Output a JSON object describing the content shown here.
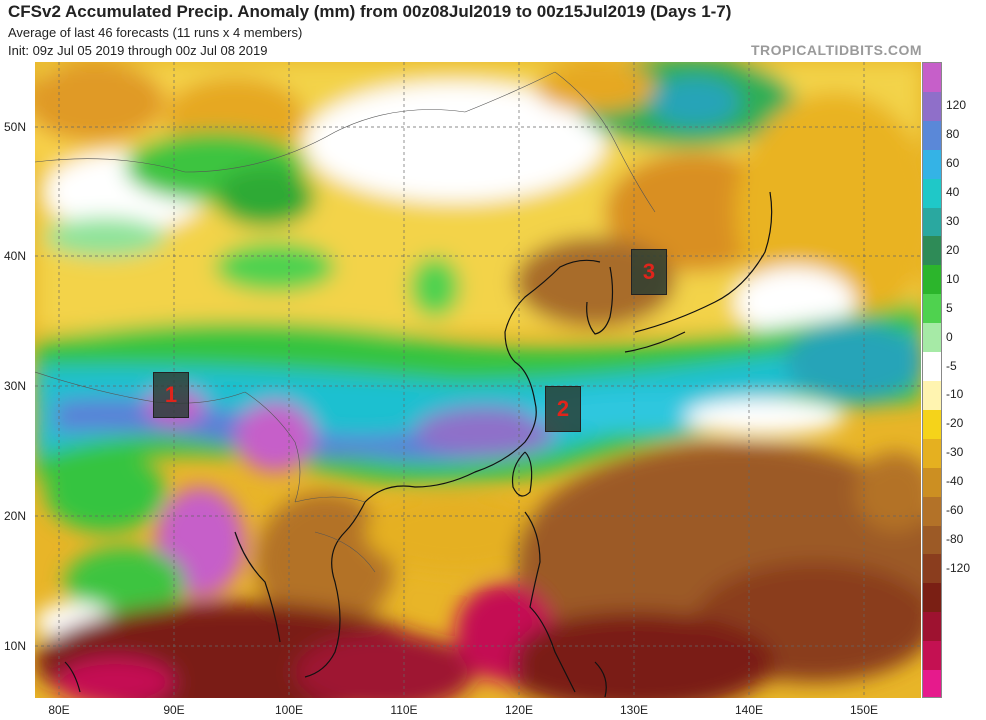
{
  "header": {
    "title": "CFSv2 Accumulated Precip. Anomaly (mm) from 00z08Jul2019 to 00z15Jul2019 (Days 1-7)",
    "subtitle1": "Average of last 46 forecasts (11 runs x 4 members)",
    "subtitle2": "Init: 09z Jul 05 2019 through 00z Jul 08 2019",
    "brand": "TROPICALTIDBITS.COM"
  },
  "axes": {
    "lat_labels": [
      "50N",
      "40N",
      "30N",
      "20N",
      "10N"
    ],
    "lon_labels": [
      "80E",
      "90E",
      "100E",
      "110E",
      "120E",
      "130E",
      "140E",
      "150E"
    ]
  },
  "colorbar": {
    "labels": [
      "120",
      "80",
      "60",
      "40",
      "30",
      "20",
      "10",
      "5",
      "0",
      "-5",
      "-10",
      "-20",
      "-30",
      "-40",
      "-60",
      "-80",
      "-120"
    ],
    "colors": [
      "#c65fc9",
      "#8f6fc9",
      "#5a88d8",
      "#34b3e6",
      "#1fc8c8",
      "#2aa8a0",
      "#2e8b57",
      "#2cb52c",
      "#4fd24f",
      "#a6eaa6",
      "#ffffff",
      "#fff4b0",
      "#f5d31a",
      "#e5b020",
      "#cc8f22",
      "#b37228",
      "#9c5a26",
      "#8a3d1e",
      "#7a1f14",
      "#9e1230",
      "#c41152",
      "#e61a8c"
    ]
  },
  "markers": [
    {
      "label": "1"
    },
    {
      "label": "2"
    },
    {
      "label": "3"
    }
  ]
}
